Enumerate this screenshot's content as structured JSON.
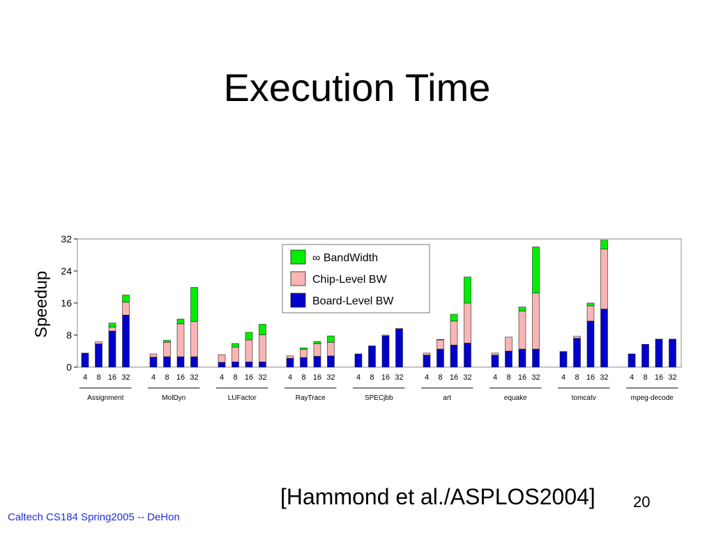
{
  "slide": {
    "title": "Execution Time",
    "citation": "[Hammond et al./ASPLOS2004]",
    "page_number": "20",
    "footer": "Caltech CS184 Spring2005 -- DeHon"
  },
  "colors": {
    "board_level": "#0000cc",
    "chip_level": "#f9b4b4",
    "bandwidth": "#00ee00",
    "axis": "#000000",
    "footer": "#1f2fd6"
  },
  "chart_data": {
    "type": "bar",
    "stacked": true,
    "ylabel": "Speedup",
    "ylim": [
      0,
      32
    ],
    "yticks": [
      "0",
      "8",
      "16",
      "24",
      "32"
    ],
    "processor_counts": [
      "4",
      "8",
      "16",
      "32"
    ],
    "groups": [
      "Assignment",
      "MolDyn",
      "LUFactor",
      "RayTrace",
      "SPECjbb",
      "art",
      "equake",
      "tomcatv",
      "mpeg-decode"
    ],
    "legend": {
      "position": "top-center",
      "entries": [
        "∞ BandWidth",
        "Chip-Level BW",
        "Board-Level BW"
      ]
    },
    "series": [
      {
        "name": "Board-Level BW",
        "color_key": "board_level",
        "values": [
          [
            3.5,
            5.8,
            9.0,
            13.0
          ],
          [
            2.5,
            2.6,
            2.6,
            2.6
          ],
          [
            1.2,
            1.3,
            1.3,
            1.3
          ],
          [
            2.2,
            2.4,
            2.7,
            2.8
          ],
          [
            3.3,
            5.3,
            7.8,
            9.5
          ],
          [
            3.0,
            4.5,
            5.5,
            6.0
          ],
          [
            3.0,
            4.0,
            4.5,
            4.5
          ],
          [
            3.8,
            7.2,
            11.5,
            14.5
          ],
          [
            3.3,
            5.7,
            7.0,
            7.0
          ]
        ]
      },
      {
        "name": "Chip-Level BW",
        "color_key": "chip_level",
        "values": [
          [
            0.0,
            0.5,
            1.0,
            3.2
          ],
          [
            0.8,
            3.6,
            8.2,
            8.8
          ],
          [
            1.9,
            3.7,
            5.5,
            6.8
          ],
          [
            0.6,
            2.0,
            3.1,
            3.4
          ],
          [
            0.0,
            0.0,
            0.2,
            0.2
          ],
          [
            0.5,
            2.3,
            6.0,
            10.0
          ],
          [
            0.5,
            3.5,
            9.5,
            14.0
          ],
          [
            0.1,
            0.5,
            3.8,
            15.0
          ],
          [
            0.0,
            0.0,
            0.0,
            0.0
          ]
        ]
      },
      {
        "name": "∞ BandWidth",
        "color_key": "bandwidth",
        "values": [
          [
            0.0,
            0.0,
            1.0,
            1.8
          ],
          [
            0.0,
            0.5,
            1.2,
            8.5
          ],
          [
            0.0,
            0.9,
            1.9,
            2.6
          ],
          [
            0.0,
            0.4,
            0.6,
            1.6
          ],
          [
            0.0,
            0.0,
            0.0,
            0.0
          ],
          [
            0.0,
            0.1,
            1.7,
            6.5
          ],
          [
            0.0,
            0.0,
            1.0,
            11.5
          ],
          [
            0.0,
            0.0,
            0.7,
            2.2
          ],
          [
            0.0,
            0.0,
            0.0,
            0.0
          ]
        ]
      }
    ]
  }
}
